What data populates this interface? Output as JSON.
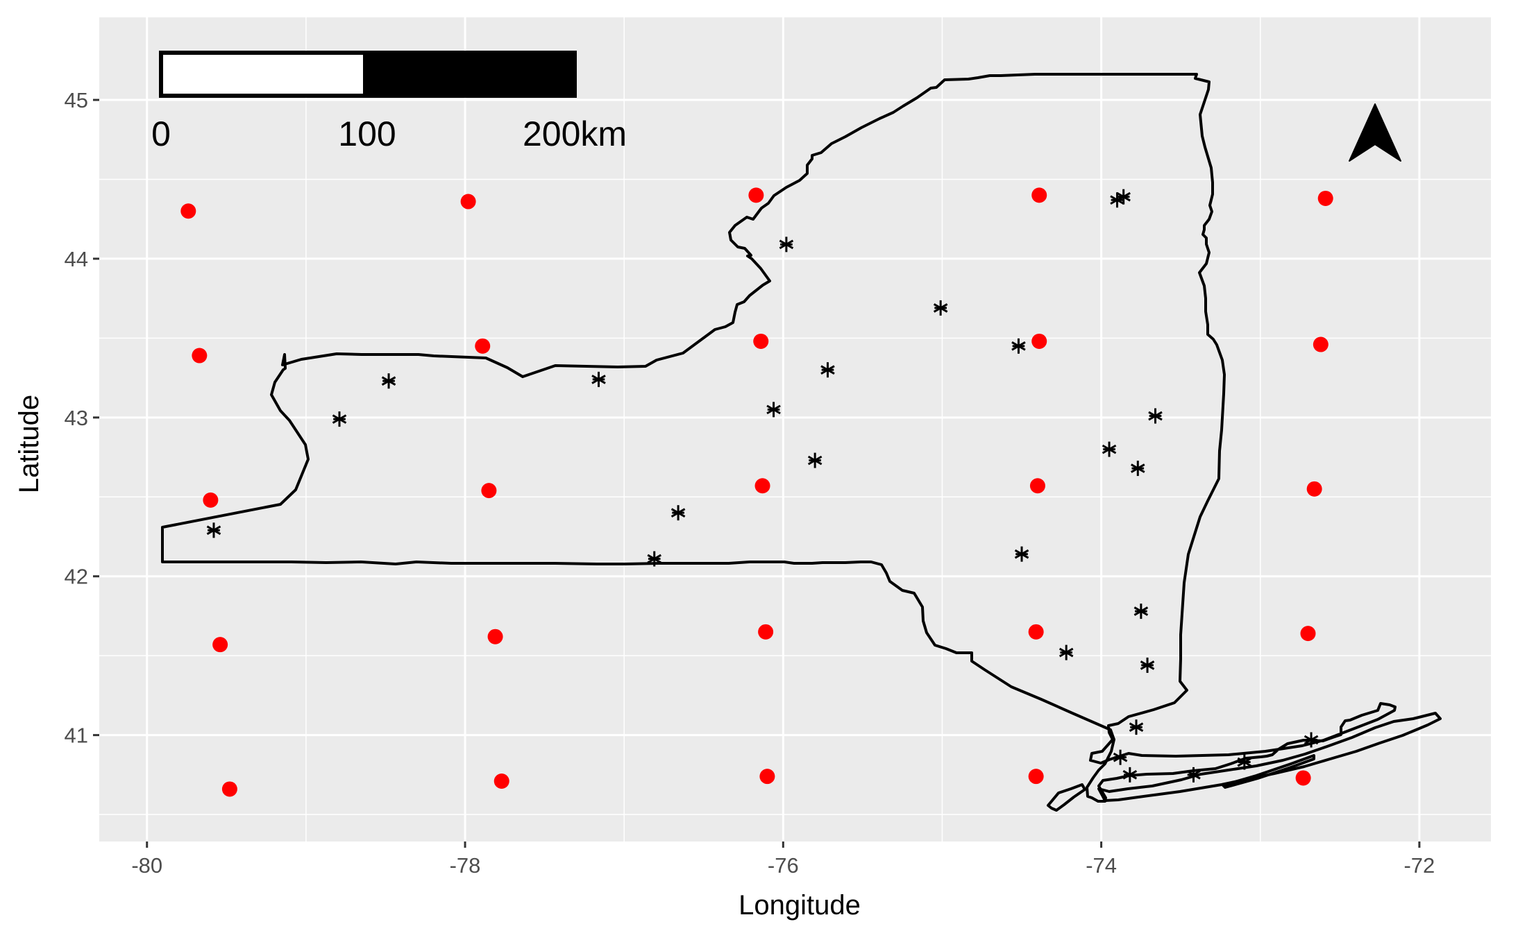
{
  "map": {
    "xlabel": "Longitude",
    "ylabel": "Latitude",
    "xlim": [
      -80.3,
      -71.55
    ],
    "ylim": [
      40.33,
      45.52
    ],
    "x_ticks": [
      -80,
      -78,
      -76,
      -74,
      -72
    ],
    "x_tick_labels": [
      "-80",
      "-78",
      "-76",
      "-74",
      "-72"
    ],
    "y_ticks": [
      41,
      42,
      43,
      44,
      45
    ],
    "y_tick_labels": [
      "41",
      "42",
      "43",
      "44",
      "45"
    ],
    "minor_x": [
      -79,
      -77,
      -75,
      -73
    ],
    "minor_y": [
      40.5,
      41.5,
      42.5,
      43.5,
      44.5
    ],
    "grid": true,
    "colors": {
      "panel": "#ebebeb",
      "grid": "#ffffff",
      "outline": "#000000",
      "grid_points": "#ff0000",
      "stations": "#000000"
    },
    "scale_bar": {
      "labels": [
        "0",
        "100",
        "200km"
      ],
      "fill_colors": [
        "#ffffff",
        "#000000"
      ]
    },
    "north_arrow": {
      "icon": "north-arrow-icon"
    }
  },
  "chart_data": {
    "type": "scatter",
    "series": [
      {
        "marker": "filled-circle",
        "color": "#ff0000",
        "points": [
          [
            -79.74,
            44.3
          ],
          [
            -77.98,
            44.36
          ],
          [
            -76.17,
            44.4
          ],
          [
            -74.39,
            44.4
          ],
          [
            -72.59,
            44.38
          ],
          [
            -79.67,
            43.39
          ],
          [
            -77.89,
            43.45
          ],
          [
            -76.14,
            43.48
          ],
          [
            -74.39,
            43.48
          ],
          [
            -72.62,
            43.46
          ],
          [
            -79.6,
            42.48
          ],
          [
            -77.85,
            42.54
          ],
          [
            -76.13,
            42.57
          ],
          [
            -74.4,
            42.57
          ],
          [
            -72.66,
            42.55
          ],
          [
            -79.54,
            41.57
          ],
          [
            -77.81,
            41.62
          ],
          [
            -76.11,
            41.65
          ],
          [
            -74.41,
            41.65
          ],
          [
            -72.7,
            41.64
          ],
          [
            -79.48,
            40.66
          ],
          [
            -77.77,
            40.71
          ],
          [
            -76.1,
            40.74
          ],
          [
            -74.41,
            40.74
          ],
          [
            -72.73,
            40.73
          ]
        ]
      },
      {
        "marker": "asterisk",
        "color": "#000000",
        "points": [
          [
            -75.98,
            44.09
          ],
          [
            -73.9,
            44.37
          ],
          [
            -73.86,
            44.39
          ],
          [
            -75.01,
            43.69
          ],
          [
            -74.52,
            43.45
          ],
          [
            -75.72,
            43.3
          ],
          [
            -78.48,
            43.23
          ],
          [
            -77.16,
            43.24
          ],
          [
            -76.06,
            43.05
          ],
          [
            -78.79,
            42.99
          ],
          [
            -73.66,
            43.01
          ],
          [
            -75.8,
            42.73
          ],
          [
            -73.95,
            42.8
          ],
          [
            -73.77,
            42.68
          ],
          [
            -76.66,
            42.4
          ],
          [
            -79.58,
            42.29
          ],
          [
            -76.81,
            42.11
          ],
          [
            -74.5,
            42.14
          ],
          [
            -73.75,
            41.78
          ],
          [
            -74.22,
            41.52
          ],
          [
            -73.71,
            41.44
          ],
          [
            -73.78,
            41.05
          ],
          [
            -73.88,
            40.86
          ],
          [
            -73.82,
            40.75
          ],
          [
            -73.42,
            40.75
          ],
          [
            -73.1,
            40.83
          ],
          [
            -72.68,
            40.97
          ]
        ]
      }
    ]
  }
}
